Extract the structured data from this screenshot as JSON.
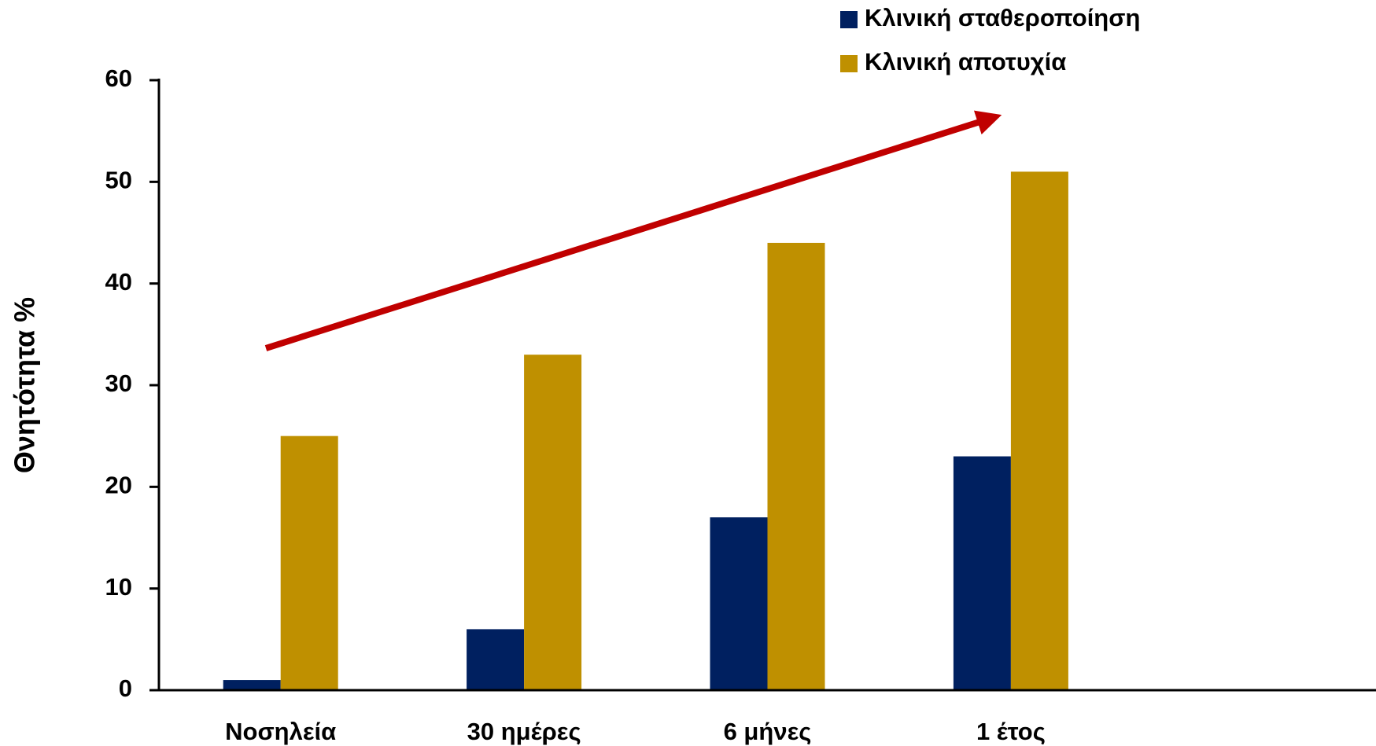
{
  "chart_data": {
    "type": "bar",
    "y_label": "Θνητότητα %",
    "categories": [
      "Νοσηλεία",
      "30 ημέρες",
      "6 μήνες",
      "1 έτος",
      null
    ],
    "series": [
      {
        "name": "Κλινική σταθεροποίηση",
        "color": "#002060",
        "values": [
          1,
          6,
          17,
          23,
          null
        ]
      },
      {
        "name": "Κλινική αποτυχία",
        "color": "#BF9000",
        "values": [
          25,
          33,
          44,
          51,
          null
        ]
      }
    ],
    "ylim": [
      0,
      60
    ],
    "yticks": [
      0,
      10,
      20,
      30,
      40,
      50,
      60
    ],
    "legend": "top-right"
  }
}
